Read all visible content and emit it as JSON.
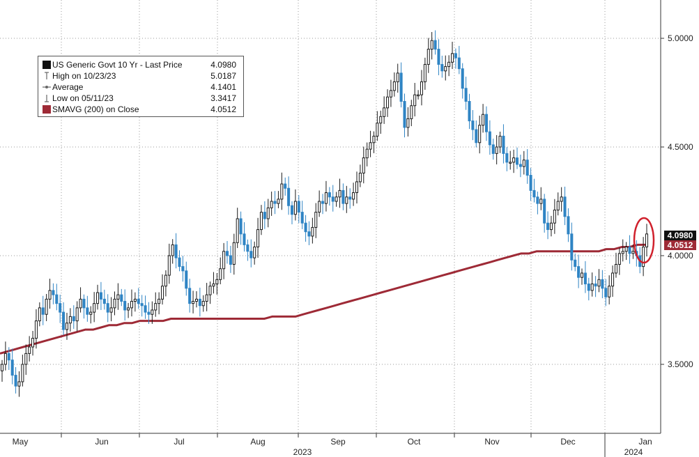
{
  "chart_data": {
    "type": "line",
    "title": "",
    "ylim": [
      3.2,
      5.15
    ],
    "y_ticks": [
      "3.5000",
      "4.0000",
      "4.5000",
      "5.0000"
    ],
    "x_month_labels": [
      "May",
      "Jun",
      "Jul",
      "Aug",
      "Sep",
      "Oct",
      "Nov",
      "Dec",
      "Jan"
    ],
    "x_year_labels": [
      "2023",
      "2024"
    ],
    "grid": true,
    "legend_position": "top-left",
    "legend": [
      {
        "name": "US Generic Govt 10 Yr - Last Price",
        "value": "4.0980"
      },
      {
        "name": "High on 10/23/23",
        "value": "5.0187"
      },
      {
        "name": "Average",
        "value": "4.1401"
      },
      {
        "name": "Low on 05/11/23",
        "value": "3.3417"
      },
      {
        "name": "SMAVG (200)  on Close",
        "value": "4.0512"
      }
    ],
    "last_price_label": "4.0980",
    "sma_label": "4.0512",
    "colors": {
      "up": "#1a1a1a",
      "down": "#2f84c4",
      "sma": "#9e2a36",
      "highlight": "#d0202c"
    },
    "series": [
      {
        "name": "US Generic Govt 10 Yr - Last Price",
        "type": "candlestick",
        "close": [
          3.5,
          3.55,
          3.52,
          3.45,
          3.4,
          3.42,
          3.5,
          3.55,
          3.58,
          3.62,
          3.7,
          3.76,
          3.73,
          3.8,
          3.84,
          3.82,
          3.78,
          3.74,
          3.66,
          3.69,
          3.72,
          3.7,
          3.76,
          3.8,
          3.76,
          3.73,
          3.74,
          3.78,
          3.83,
          3.8,
          3.78,
          3.74,
          3.76,
          3.8,
          3.82,
          3.79,
          3.75,
          3.76,
          3.79,
          3.8,
          3.78,
          3.77,
          3.74,
          3.73,
          3.75,
          3.78,
          3.8,
          3.86,
          3.91,
          4.0,
          4.05,
          3.99,
          3.95,
          3.93,
          3.85,
          3.78,
          3.79,
          3.8,
          3.77,
          3.79,
          3.82,
          3.86,
          3.87,
          3.89,
          3.94,
          4.02,
          4.0,
          3.96,
          4.06,
          4.17,
          4.1,
          4.05,
          4.02,
          3.99,
          4.04,
          4.12,
          4.2,
          4.17,
          4.22,
          4.25,
          4.24,
          4.26,
          4.33,
          4.31,
          4.23,
          4.19,
          4.25,
          4.2,
          4.15,
          4.11,
          4.09,
          4.13,
          4.2,
          4.25,
          4.24,
          4.29,
          4.27,
          4.25,
          4.27,
          4.3,
          4.24,
          4.27,
          4.26,
          4.29,
          4.34,
          4.38,
          4.45,
          4.49,
          4.52,
          4.55,
          4.61,
          4.64,
          4.68,
          4.73,
          4.76,
          4.8,
          4.84,
          4.71,
          4.59,
          4.63,
          4.69,
          4.74,
          4.74,
          4.8,
          4.88,
          4.95,
          4.99,
          4.95,
          4.88,
          4.85,
          4.87,
          4.89,
          4.93,
          4.91,
          4.86,
          4.77,
          4.71,
          4.62,
          4.58,
          4.52,
          4.6,
          4.65,
          4.57,
          4.51,
          4.47,
          4.5,
          4.55,
          4.47,
          4.43,
          4.43,
          4.45,
          4.42,
          4.41,
          4.44,
          4.37,
          4.3,
          4.27,
          4.24,
          4.26,
          4.15,
          4.12,
          4.15,
          4.21,
          4.25,
          4.27,
          4.18,
          4.1,
          3.98,
          3.95,
          3.9,
          3.92,
          3.87,
          3.84,
          3.87,
          3.86,
          3.89,
          3.85,
          3.81,
          3.86,
          3.92,
          3.96,
          4.01,
          4.02,
          4.04,
          4.01,
          4.02,
          4.0,
          3.95,
          4.04,
          4.1
        ]
      },
      {
        "name": "SMAVG (200)  on Close",
        "type": "line",
        "values": [
          3.55,
          3.56,
          3.57,
          3.58,
          3.59,
          3.6,
          3.61,
          3.62,
          3.63,
          3.64,
          3.65,
          3.66,
          3.66,
          3.67,
          3.68,
          3.68,
          3.69,
          3.69,
          3.7,
          3.7,
          3.7,
          3.7,
          3.71,
          3.71,
          3.71,
          3.71,
          3.71,
          3.71,
          3.71,
          3.71,
          3.71,
          3.71,
          3.71,
          3.71,
          3.71,
          3.72,
          3.72,
          3.72,
          3.72,
          3.73,
          3.74,
          3.75,
          3.76,
          3.77,
          3.78,
          3.79,
          3.8,
          3.81,
          3.82,
          3.83,
          3.84,
          3.85,
          3.86,
          3.87,
          3.88,
          3.89,
          3.9,
          3.91,
          3.92,
          3.93,
          3.94,
          3.95,
          3.96,
          3.97,
          3.98,
          3.99,
          4.0,
          4.01,
          4.01,
          4.02,
          4.02,
          4.02,
          4.02,
          4.02,
          4.02,
          4.02,
          4.02,
          4.02,
          4.03,
          4.03,
          4.04,
          4.04,
          4.05,
          4.05
        ]
      }
    ]
  }
}
